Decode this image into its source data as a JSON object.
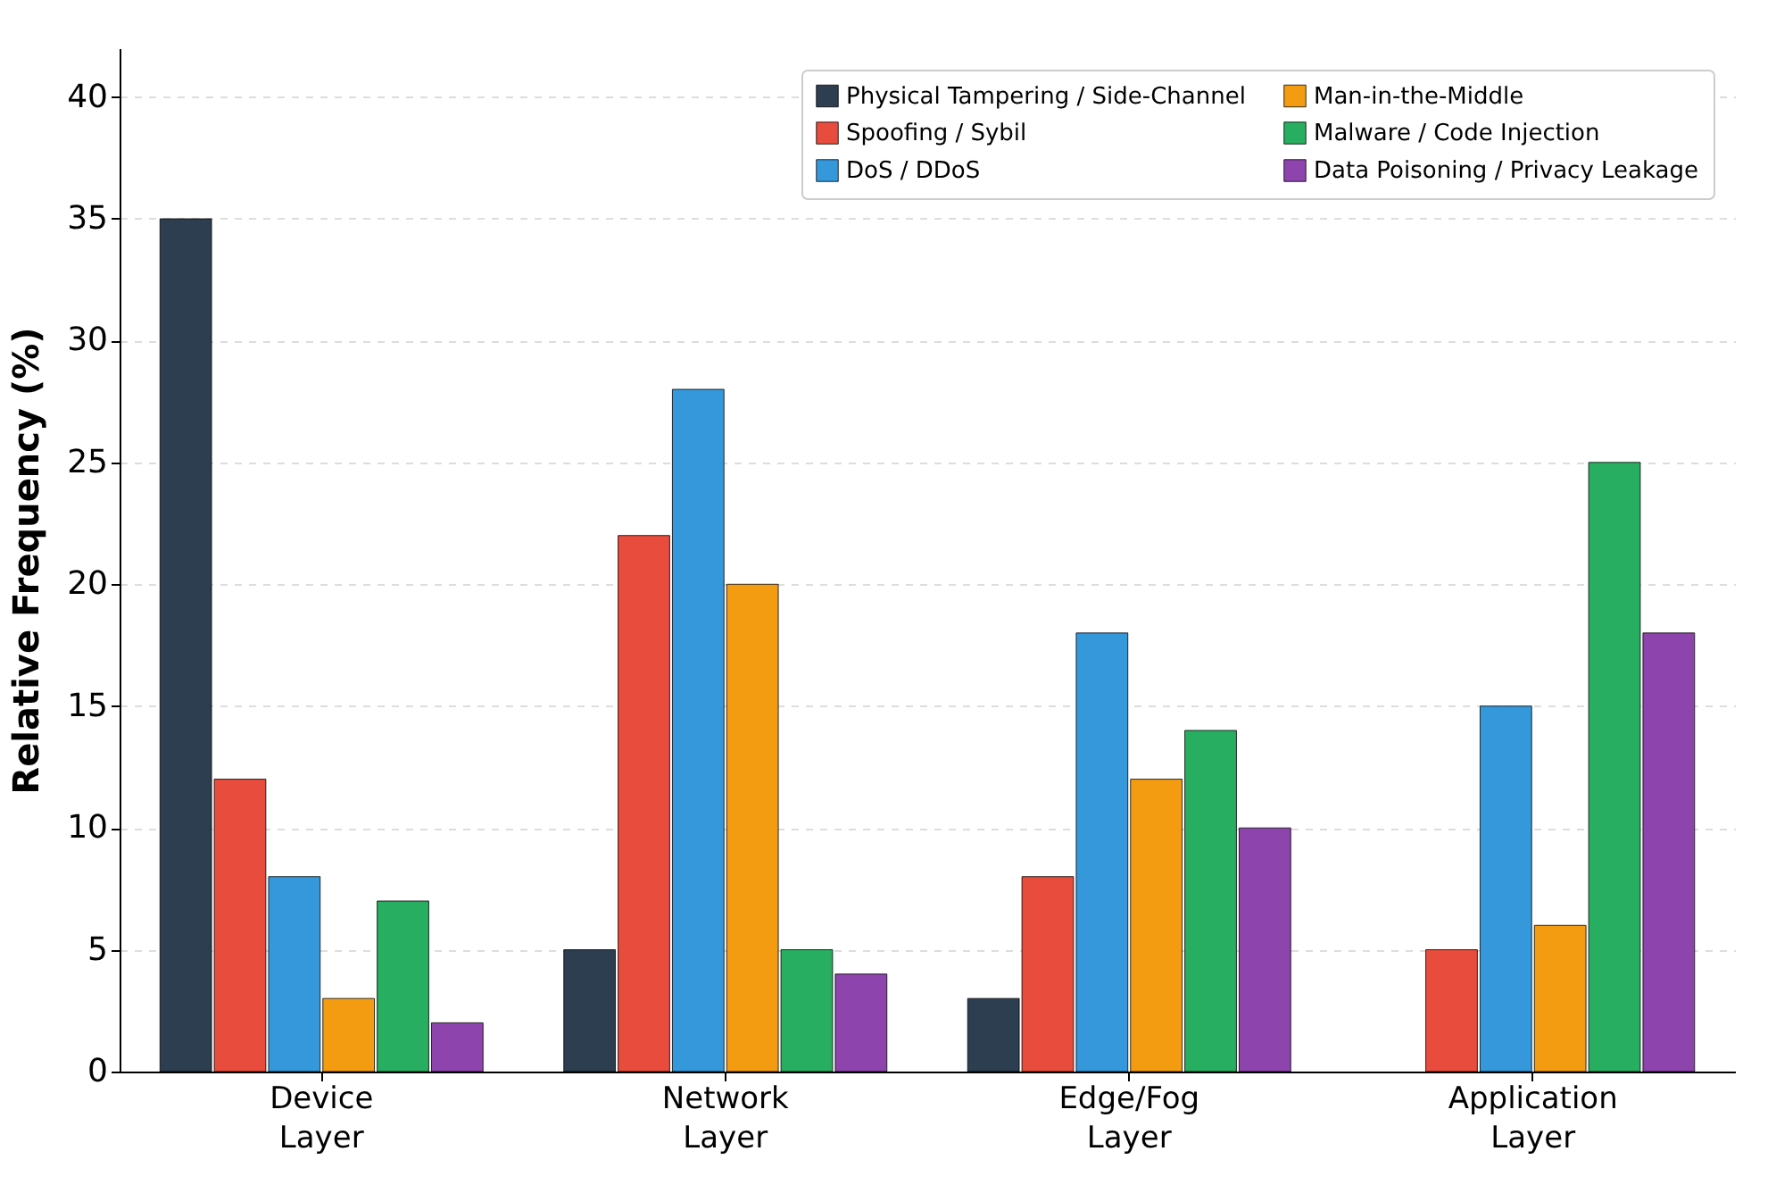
{
  "chart_data": {
    "type": "bar",
    "ylabel": "Relative Frequency (%)",
    "categories": [
      "Device Layer",
      "Network Layer",
      "Edge/Fog Layer",
      "Application Layer"
    ],
    "series": [
      {
        "name": "Physical Tampering / Side-Channel",
        "color": "#2c3e50",
        "values": [
          35,
          5,
          3,
          null
        ]
      },
      {
        "name": "Spoofing / Sybil",
        "color": "#e74c3c",
        "values": [
          12,
          22,
          8,
          5
        ]
      },
      {
        "name": "DoS / DDoS",
        "color": "#3498db",
        "values": [
          8,
          28,
          18,
          15
        ]
      },
      {
        "name": "Man-in-the-Middle",
        "color": "#f39c12",
        "values": [
          3,
          20,
          12,
          6
        ]
      },
      {
        "name": "Malware / Code Injection",
        "color": "#27ae60",
        "values": [
          7,
          5,
          14,
          25
        ]
      },
      {
        "name": "Data Poisoning / Privacy Leakage",
        "color": "#8e44ad",
        "values": [
          2,
          4,
          10,
          18
        ]
      }
    ],
    "ylim": [
      0,
      42
    ],
    "yticks": [
      0,
      5,
      10,
      15,
      20,
      25,
      30,
      35,
      40
    ],
    "grid": "y",
    "legend": "top right"
  }
}
